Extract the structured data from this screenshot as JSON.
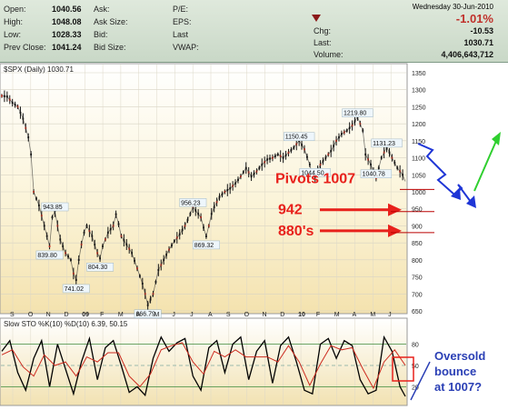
{
  "quote": {
    "open_label": "Open:",
    "open": "1040.56",
    "high_label": "High:",
    "high": "1048.08",
    "low_label": "Low:",
    "low": "1028.33",
    "prev_close_label": "Prev Close:",
    "prev_close": "1041.24",
    "ask_label": "Ask:",
    "ask_size_label": "Ask Size:",
    "bid_label": "Bid:",
    "bid_size_label": "Bid Size:",
    "pe_label": "P/E:",
    "eps_label": "EPS:",
    "last_label": "Last",
    "vwap_label": "VWAP:",
    "date": "Wednesday  30-Jun-2010",
    "change_pct": "-1.01%",
    "chg_label": "Chg:",
    "chg": "-10.53",
    "last2_label": "Last:",
    "last": "1030.71",
    "volume_label": "Volume:",
    "volume": "4,406,643,712",
    "colors": {
      "down": "#c0302a",
      "arrow": "#8b1a1a"
    }
  },
  "chart_data": [
    {
      "type": "line",
      "title": "$SPX (Daily) 1030.71",
      "x_ticks": [
        "S",
        "O",
        "N",
        "D",
        "09",
        "F",
        "M",
        "A",
        "M",
        "J",
        "J",
        "A",
        "S",
        "O",
        "N",
        "D",
        "10",
        "F",
        "M",
        "A",
        "M",
        "J"
      ],
      "ylim": [
        650,
        1350
      ],
      "y_ticks": [
        650,
        700,
        750,
        800,
        850,
        900,
        950,
        1000,
        1050,
        1100,
        1150,
        1200,
        1250,
        1300,
        1350
      ],
      "grid": true,
      "series": [
        {
          "values": [
            [
              0,
              1282
            ],
            [
              2,
              1280
            ],
            [
              4,
              1262
            ],
            [
              6,
              1250
            ],
            [
              8,
              1215
            ],
            [
              10,
              1160
            ],
            [
              11,
              1110
            ],
            [
              12,
              1000
            ],
            [
              14,
              960
            ],
            [
              16,
              900
            ],
            [
              17,
              870
            ],
            [
              18,
              840
            ],
            [
              19,
              925
            ],
            [
              20,
              943.85
            ],
            [
              21,
              900
            ],
            [
              22,
              860
            ],
            [
              24,
              820
            ],
            [
              26,
              800
            ],
            [
              27,
              760
            ],
            [
              28,
              741.02
            ],
            [
              29,
              800
            ],
            [
              30,
              845
            ],
            [
              31,
              880
            ],
            [
              32,
              900
            ],
            [
              34,
              870
            ],
            [
              36,
              820
            ],
            [
              37,
              804.3
            ],
            [
              38,
              840
            ],
            [
              40,
              880
            ],
            [
              42,
              900
            ],
            [
              43,
              934
            ],
            [
              44,
              905
            ],
            [
              45,
              870
            ],
            [
              47,
              845
            ],
            [
              49,
              820
            ],
            [
              51,
              775
            ],
            [
              53,
              730
            ],
            [
              54,
              700
            ],
            [
              55,
              666.79
            ],
            [
              57,
              700
            ],
            [
              59,
              770
            ],
            [
              61,
              800
            ],
            [
              63,
              830
            ],
            [
              65,
              855
            ],
            [
              67,
              875
            ],
            [
              69,
              900
            ],
            [
              71,
              935
            ],
            [
              72,
              956.23
            ],
            [
              73,
              945
            ],
            [
              75,
              925
            ],
            [
              76,
              895
            ],
            [
              77,
              869.32
            ],
            [
              78,
              900
            ],
            [
              79,
              935
            ],
            [
              80,
              955
            ],
            [
              82,
              985
            ],
            [
              84,
              1000
            ],
            [
              86,
              1010
            ],
            [
              88,
              1025
            ],
            [
              90,
              1045
            ],
            [
              92,
              1070
            ],
            [
              94,
              1045
            ],
            [
              96,
              1060
            ],
            [
              98,
              1080
            ],
            [
              100,
              1095
            ],
            [
              102,
              1100
            ],
            [
              104,
              1110
            ],
            [
              106,
              1100
            ],
            [
              108,
              1115
            ],
            [
              110,
              1130
            ],
            [
              112,
              1150.45
            ],
            [
              114,
              1125
            ],
            [
              116,
              1080
            ],
            [
              117,
              1050
            ],
            [
              118,
              1044.5
            ],
            [
              120,
              1080
            ],
            [
              122,
              1100
            ],
            [
              124,
              1120
            ],
            [
              126,
              1150
            ],
            [
              128,
              1170
            ],
            [
              130,
              1180
            ],
            [
              132,
              1195
            ],
            [
              134,
              1219.8
            ],
            [
              136,
              1180
            ],
            [
              137,
              1110
            ],
            [
              139,
              1080
            ],
            [
              140,
              1060
            ],
            [
              141,
              1040.78
            ],
            [
              142,
              1070
            ],
            [
              143,
              1100
            ],
            [
              145,
              1131.23
            ],
            [
              147,
              1100
            ],
            [
              149,
              1070
            ],
            [
              151,
              1050
            ],
            [
              152,
              1030.71
            ]
          ]
        }
      ],
      "annotations": [
        {
          "text": "839.80",
          "x": 18,
          "y": 839.8
        },
        {
          "text": "943.85",
          "x": 20,
          "y": 943.85
        },
        {
          "text": "741.02",
          "x": 28,
          "y": 741.02
        },
        {
          "text": "804.30",
          "x": 37,
          "y": 804.3
        },
        {
          "text": "666.79",
          "x": 55,
          "y": 666.79
        },
        {
          "text": "956.23",
          "x": 72,
          "y": 956.23
        },
        {
          "text": "869.32",
          "x": 77,
          "y": 869.32
        },
        {
          "text": "1150.45",
          "x": 112,
          "y": 1150.45
        },
        {
          "text": "1044.50",
          "x": 118,
          "y": 1044.5
        },
        {
          "text": "1219.80",
          "x": 134,
          "y": 1219.8
        },
        {
          "text": "1040.78",
          "x": 141,
          "y": 1040.78
        },
        {
          "text": "1131.23",
          "x": 145,
          "y": 1131.23
        }
      ],
      "pivots": {
        "labels": [
          "Pivots 1007",
          "942",
          "880's"
        ],
        "levels": [
          1007,
          942,
          880
        ]
      }
    },
    {
      "type": "line",
      "title": "Slow STO %K(10) %D(10) 6.39, 50.15",
      "ylim": [
        0,
        100
      ],
      "y_ticks": [
        20,
        50,
        80
      ],
      "series": [
        {
          "name": "%K",
          "color": "#000000",
          "values": [
            [
              0,
              70
            ],
            [
              3,
              85
            ],
            [
              6,
              40
            ],
            [
              9,
              15
            ],
            [
              12,
              60
            ],
            [
              15,
              85
            ],
            [
              18,
              20
            ],
            [
              21,
              80
            ],
            [
              24,
              45
            ],
            [
              27,
              10
            ],
            [
              30,
              55
            ],
            [
              33,
              88
            ],
            [
              36,
              30
            ],
            [
              39,
              75
            ],
            [
              42,
              85
            ],
            [
              45,
              50
            ],
            [
              48,
              12
            ],
            [
              51,
              20
            ],
            [
              54,
              8
            ],
            [
              57,
              60
            ],
            [
              60,
              90
            ],
            [
              63,
              70
            ],
            [
              66,
              82
            ],
            [
              69,
              88
            ],
            [
              72,
              35
            ],
            [
              75,
              15
            ],
            [
              78,
              75
            ],
            [
              81,
              85
            ],
            [
              84,
              40
            ],
            [
              87,
              80
            ],
            [
              90,
              90
            ],
            [
              93,
              30
            ],
            [
              96,
              70
            ],
            [
              99,
              85
            ],
            [
              102,
              25
            ],
            [
              105,
              78
            ],
            [
              108,
              90
            ],
            [
              111,
              55
            ],
            [
              114,
              15
            ],
            [
              117,
              10
            ],
            [
              120,
              80
            ],
            [
              123,
              88
            ],
            [
              126,
              60
            ],
            [
              129,
              85
            ],
            [
              132,
              78
            ],
            [
              135,
              30
            ],
            [
              138,
              10
            ],
            [
              141,
              15
            ],
            [
              144,
              90
            ],
            [
              147,
              70
            ],
            [
              150,
              20
            ],
            [
              152,
              6.39
            ]
          ]
        },
        {
          "name": "%D",
          "color": "#cc2a1e",
          "values": [
            [
              0,
              65
            ],
            [
              4,
              72
            ],
            [
              8,
              48
            ],
            [
              12,
              35
            ],
            [
              16,
              65
            ],
            [
              20,
              50
            ],
            [
              24,
              55
            ],
            [
              28,
              35
            ],
            [
              32,
              62
            ],
            [
              36,
              55
            ],
            [
              40,
              68
            ],
            [
              44,
              68
            ],
            [
              48,
              35
            ],
            [
              52,
              20
            ],
            [
              56,
              38
            ],
            [
              60,
              72
            ],
            [
              64,
              78
            ],
            [
              68,
              82
            ],
            [
              72,
              55
            ],
            [
              76,
              38
            ],
            [
              80,
              70
            ],
            [
              84,
              62
            ],
            [
              88,
              72
            ],
            [
              92,
              62
            ],
            [
              96,
              62
            ],
            [
              100,
              62
            ],
            [
              104,
              55
            ],
            [
              108,
              78
            ],
            [
              112,
              55
            ],
            [
              116,
              22
            ],
            [
              120,
              52
            ],
            [
              124,
              78
            ],
            [
              128,
              72
            ],
            [
              132,
              75
            ],
            [
              136,
              45
            ],
            [
              140,
              18
            ],
            [
              144,
              55
            ],
            [
              148,
              72
            ],
            [
              152,
              50.15
            ]
          ]
        }
      ]
    }
  ],
  "forecast_note": {
    "lines": [
      "Oversold",
      "bounce",
      "at 1007?"
    ]
  },
  "colors": {
    "pivot": "#e8211b",
    "note": "#2a3fb5",
    "up_arrow": "#2fcf2f",
    "down_arrow": "#1e35d6",
    "candles": "#141414"
  }
}
